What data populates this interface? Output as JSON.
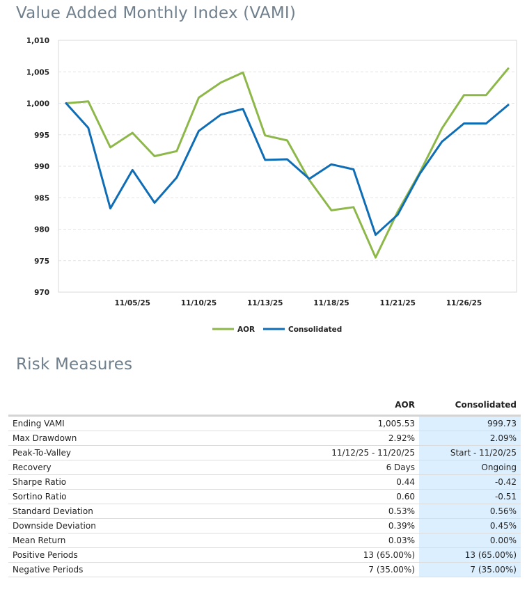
{
  "vami": {
    "title": "Value Added Monthly Index (VAMI)"
  },
  "chart_data": {
    "type": "line",
    "title": "Value Added Monthly Index (VAMI)",
    "xlabel": "",
    "ylabel": "",
    "ylim": [
      970,
      1010
    ],
    "yticks": [
      "1,010",
      "1,005",
      "1,000",
      "995",
      "990",
      "985",
      "980",
      "975",
      "970"
    ],
    "ytick_values": [
      1010,
      1005,
      1000,
      995,
      990,
      985,
      980,
      975,
      970
    ],
    "x_categories": [
      "11/01/25",
      "11/03/25",
      "11/04/25",
      "11/05/25",
      "11/06/25",
      "11/07/25",
      "11/10/25",
      "11/11/25",
      "11/12/25",
      "11/13/25",
      "11/14/25",
      "11/17/25",
      "11/18/25",
      "11/19/25",
      "11/20/25",
      "11/21/25",
      "11/24/25",
      "11/25/25",
      "11/26/25",
      "11/28/25",
      "11/30/25"
    ],
    "xtick_labels": [
      {
        "label": "11/05/25",
        "index": 3
      },
      {
        "label": "11/10/25",
        "index": 6
      },
      {
        "label": "11/13/25",
        "index": 9
      },
      {
        "label": "11/18/25",
        "index": 12
      },
      {
        "label": "11/21/25",
        "index": 15
      },
      {
        "label": "11/26/25",
        "index": 18
      }
    ],
    "grid": true,
    "legend_position": "bottom-center",
    "series": [
      {
        "name": "AOR",
        "color": "#8db849",
        "values": [
          1000.0,
          1000.3,
          993.0,
          995.3,
          991.6,
          992.4,
          1000.9,
          1003.3,
          1004.9,
          994.9,
          994.1,
          987.8,
          983.0,
          983.5,
          975.5,
          982.8,
          989.0,
          996.0,
          1001.3,
          1001.3,
          1005.53
        ]
      },
      {
        "name": "Consolidated",
        "color": "#0f6db5",
        "values": [
          1000.0,
          996.1,
          983.3,
          989.4,
          984.2,
          988.2,
          995.6,
          998.2,
          999.1,
          991.0,
          991.1,
          988.0,
          990.3,
          989.5,
          979.1,
          982.3,
          988.8,
          993.9,
          996.8,
          996.8,
          999.73
        ]
      }
    ]
  },
  "risk": {
    "title": "Risk Measures",
    "columns": {
      "name": "",
      "aor": "AOR",
      "consolidated": "Consolidated"
    },
    "rows": [
      {
        "name": "Ending VAMI",
        "aor": "1,005.53",
        "consolidated": "999.73"
      },
      {
        "name": "Max Drawdown",
        "aor": "2.92%",
        "consolidated": "2.09%"
      },
      {
        "name": "Peak-To-Valley",
        "aor": "11/12/25 - 11/20/25",
        "consolidated": "Start - 11/20/25"
      },
      {
        "name": "Recovery",
        "aor": "6 Days",
        "consolidated": "Ongoing"
      },
      {
        "name": "Sharpe Ratio",
        "aor": "0.44",
        "consolidated": "-0.42"
      },
      {
        "name": "Sortino Ratio",
        "aor": "0.60",
        "consolidated": "-0.51"
      },
      {
        "name": "Standard Deviation",
        "aor": "0.53%",
        "consolidated": "0.56%"
      },
      {
        "name": "Downside Deviation",
        "aor": "0.39%",
        "consolidated": "0.45%"
      },
      {
        "name": "Mean Return",
        "aor": "0.03%",
        "consolidated": "0.00%"
      },
      {
        "name": "Positive Periods",
        "aor": "13 (65.00%)",
        "consolidated": "13 (65.00%)"
      },
      {
        "name": "Negative Periods",
        "aor": "7 (35.00%)",
        "consolidated": "7 (35.00%)"
      }
    ]
  }
}
